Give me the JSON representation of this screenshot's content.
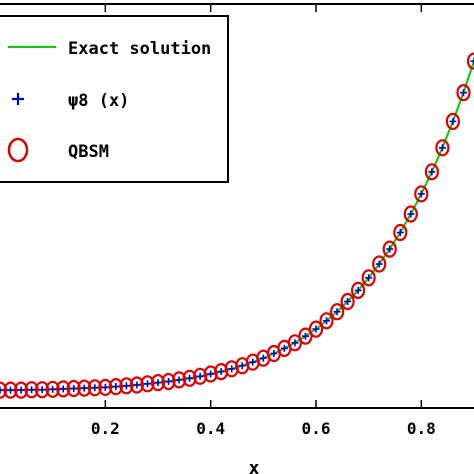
{
  "chart_data": {
    "type": "line",
    "title": "",
    "xlabel": "x",
    "ylabel": "",
    "xlim": [
      0,
      0.9
    ],
    "ylim": [
      0,
      1
    ],
    "x_ticks": [
      0.2,
      0.4,
      0.6,
      0.8
    ],
    "x_tick_labels": [
      "0.2",
      "0.4",
      "0.6",
      "0.8"
    ],
    "legend_position": "top-left",
    "series": [
      {
        "name": "Exact solution",
        "marker": "line",
        "color": "#00cc00"
      },
      {
        "name": "ψ8 (x)",
        "marker": "plus",
        "color": "#0000cc"
      },
      {
        "name": "QBSM",
        "marker": "circle",
        "color": "#dd0000"
      }
    ],
    "points": [
      {
        "x": 0.0,
        "y": 0.02
      },
      {
        "x": 0.02,
        "y": 0.02
      },
      {
        "x": 0.04,
        "y": 0.02
      },
      {
        "x": 0.06,
        "y": 0.021
      },
      {
        "x": 0.08,
        "y": 0.021
      },
      {
        "x": 0.1,
        "y": 0.022
      },
      {
        "x": 0.12,
        "y": 0.023
      },
      {
        "x": 0.14,
        "y": 0.024
      },
      {
        "x": 0.16,
        "y": 0.025
      },
      {
        "x": 0.18,
        "y": 0.026
      },
      {
        "x": 0.2,
        "y": 0.027
      },
      {
        "x": 0.22,
        "y": 0.029
      },
      {
        "x": 0.24,
        "y": 0.031
      },
      {
        "x": 0.26,
        "y": 0.033
      },
      {
        "x": 0.28,
        "y": 0.036
      },
      {
        "x": 0.3,
        "y": 0.039
      },
      {
        "x": 0.32,
        "y": 0.042
      },
      {
        "x": 0.34,
        "y": 0.046
      },
      {
        "x": 0.36,
        "y": 0.05
      },
      {
        "x": 0.38,
        "y": 0.055
      },
      {
        "x": 0.4,
        "y": 0.061
      },
      {
        "x": 0.42,
        "y": 0.067
      },
      {
        "x": 0.44,
        "y": 0.074
      },
      {
        "x": 0.46,
        "y": 0.082
      },
      {
        "x": 0.48,
        "y": 0.091
      },
      {
        "x": 0.5,
        "y": 0.101
      },
      {
        "x": 0.52,
        "y": 0.113
      },
      {
        "x": 0.54,
        "y": 0.126
      },
      {
        "x": 0.56,
        "y": 0.14
      },
      {
        "x": 0.58,
        "y": 0.157
      },
      {
        "x": 0.6,
        "y": 0.175
      },
      {
        "x": 0.62,
        "y": 0.196
      },
      {
        "x": 0.64,
        "y": 0.219
      },
      {
        "x": 0.66,
        "y": 0.245
      },
      {
        "x": 0.68,
        "y": 0.273
      },
      {
        "x": 0.7,
        "y": 0.305
      },
      {
        "x": 0.72,
        "y": 0.34
      },
      {
        "x": 0.74,
        "y": 0.378
      },
      {
        "x": 0.76,
        "y": 0.42
      },
      {
        "x": 0.78,
        "y": 0.467
      },
      {
        "x": 0.8,
        "y": 0.518
      },
      {
        "x": 0.82,
        "y": 0.574
      },
      {
        "x": 0.84,
        "y": 0.635
      },
      {
        "x": 0.86,
        "y": 0.702
      },
      {
        "x": 0.88,
        "y": 0.775
      },
      {
        "x": 0.9,
        "y": 0.855
      }
    ]
  }
}
